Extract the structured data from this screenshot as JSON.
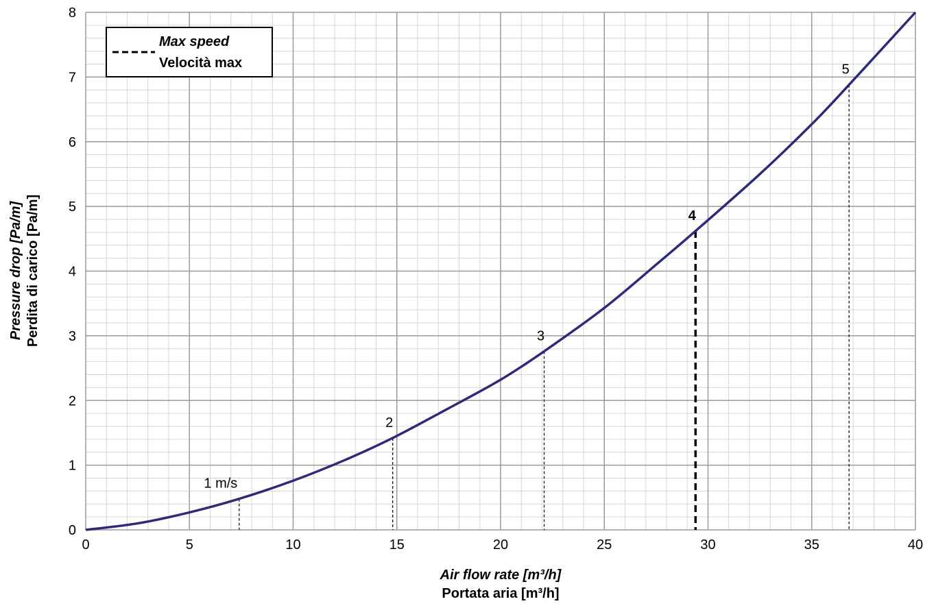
{
  "chart_data": {
    "type": "line",
    "xlabel_en": "Air flow rate [m³/h]",
    "xlabel_it": "Portata aria [m³/h]",
    "ylabel_en": "Pressure drop [Pa/m]",
    "ylabel_it": "Perdita di carico [Pa/m]",
    "xlim": [
      0,
      40
    ],
    "ylim": [
      0,
      8
    ],
    "x_ticks": [
      "0",
      "5",
      "10",
      "15",
      "20",
      "25",
      "30",
      "35",
      "40"
    ],
    "y_ticks": [
      "0",
      "1",
      "2",
      "3",
      "4",
      "5",
      "6",
      "7",
      "8"
    ],
    "grid": "major and minor",
    "series": [
      {
        "color": "#2e2a7a",
        "x": [
          0,
          2.5,
          5,
          7.4,
          10,
          12.5,
          14.8,
          17.5,
          20,
          22.1,
          25,
          27.5,
          29.4,
          32.5,
          35,
          36.8,
          40
        ],
        "y": [
          0,
          0.1,
          0.27,
          0.48,
          0.76,
          1.08,
          1.42,
          1.88,
          2.32,
          2.76,
          3.43,
          4.1,
          4.62,
          5.5,
          6.27,
          6.88,
          8.0
        ]
      }
    ],
    "velocity_markers": [
      {
        "label": "1 m/s",
        "x": 7.4,
        "y": 0.48,
        "max": false
      },
      {
        "label": "2",
        "x": 14.8,
        "y": 1.42,
        "max": false
      },
      {
        "label": "3",
        "x": 22.1,
        "y": 2.76,
        "max": false
      },
      {
        "label": "4",
        "x": 29.4,
        "y": 4.62,
        "max": true
      },
      {
        "label": "5",
        "x": 36.8,
        "y": 6.88,
        "max": false
      }
    ],
    "legend": {
      "position": "top-left",
      "line_en": "Max speed",
      "line_it": "Velocità max"
    }
  }
}
